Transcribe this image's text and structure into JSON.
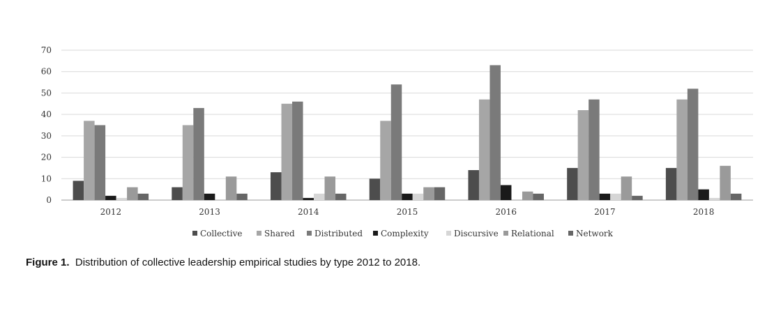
{
  "chart_data": {
    "type": "bar",
    "categories": [
      "2012",
      "2013",
      "2014",
      "2015",
      "2016",
      "2017",
      "2018"
    ],
    "series": [
      {
        "name": "Collective",
        "color": "#4d4d4d",
        "values": [
          9,
          6,
          13,
          10,
          14,
          15,
          15
        ]
      },
      {
        "name": "Shared",
        "color": "#a6a6a6",
        "values": [
          37,
          35,
          45,
          37,
          47,
          42,
          47
        ]
      },
      {
        "name": "Distributed",
        "color": "#7a7a7a",
        "values": [
          35,
          43,
          46,
          54,
          63,
          47,
          52
        ]
      },
      {
        "name": "Complexity",
        "color": "#1a1a1a",
        "values": [
          2,
          3,
          1,
          3,
          7,
          3,
          5
        ]
      },
      {
        "name": "Discursive",
        "color": "#d6d6d6",
        "values": [
          1,
          0,
          3,
          3,
          0,
          3,
          1
        ]
      },
      {
        "name": "Relational",
        "color": "#9a9a9a",
        "values": [
          6,
          11,
          11,
          6,
          4,
          11,
          16
        ]
      },
      {
        "name": "Network",
        "color": "#666666",
        "values": [
          3,
          3,
          3,
          6,
          3,
          2,
          3
        ]
      }
    ],
    "ylim": [
      0,
      70
    ],
    "yticks": [
      0,
      10,
      20,
      30,
      40,
      50,
      60,
      70
    ],
    "grid": true,
    "legend_position": "bottom"
  },
  "caption": {
    "label": "Figure 1.",
    "text": "Distribution of collective leadership empirical studies by type 2012 to 2018."
  }
}
